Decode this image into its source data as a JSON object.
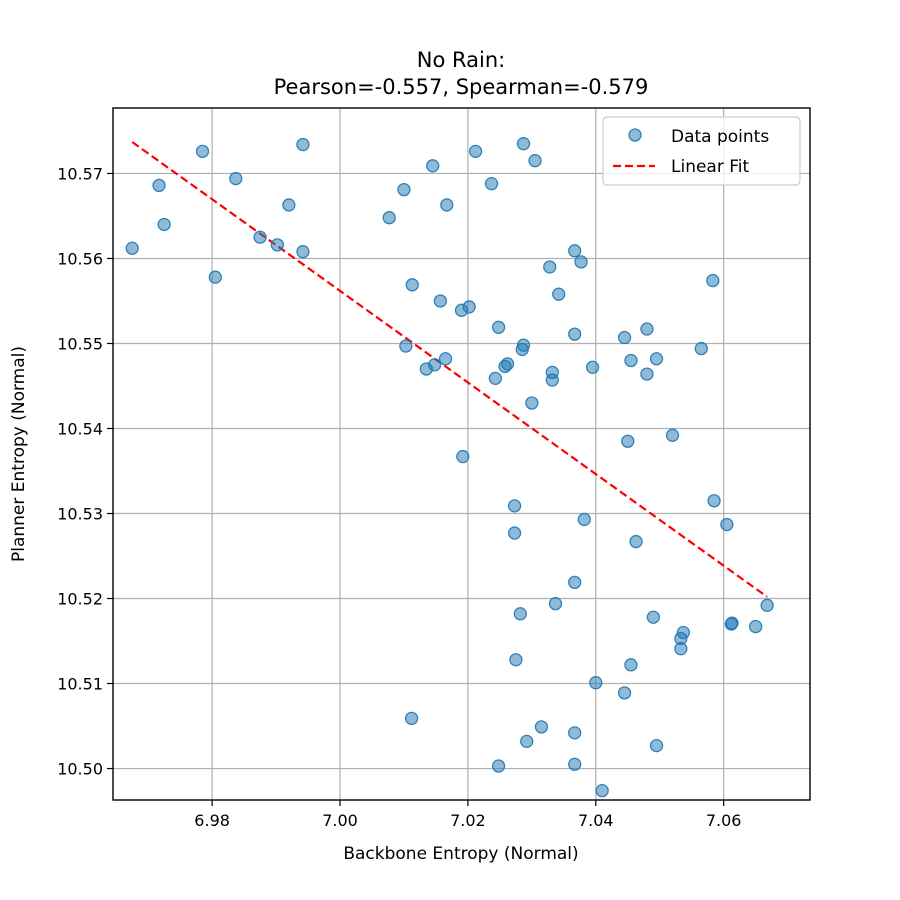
{
  "chart_data": {
    "type": "scatter",
    "title_line1": "No Rain:",
    "title_line2": "Pearson=-0.557, Spearman=-0.579",
    "xlabel": "Backbone Entropy (Normal)",
    "ylabel": "Planner Entropy (Normal)",
    "xlim": [
      6.9645,
      7.0735
    ],
    "ylim": [
      10.4963,
      10.5777
    ],
    "xticks": [
      6.98,
      7.0,
      7.02,
      7.04,
      7.06
    ],
    "xtick_labels": [
      "6.98",
      "7.00",
      "7.02",
      "7.04",
      "7.06"
    ],
    "yticks": [
      10.5,
      10.51,
      10.52,
      10.53,
      10.54,
      10.55,
      10.56,
      10.57
    ],
    "ytick_labels": [
      "10.50",
      "10.51",
      "10.52",
      "10.53",
      "10.54",
      "10.55",
      "10.56",
      "10.57"
    ],
    "grid": true,
    "legend_position": "top-right",
    "legend": [
      {
        "label": "Data points",
        "kind": "marker",
        "color": "#1f77b4"
      },
      {
        "label": "Linear Fit",
        "kind": "dashed-line",
        "color": "#ff0000"
      }
    ],
    "series": [
      {
        "name": "Data points",
        "color": "#1f77b4",
        "points": [
          [
            6.9675,
            10.5612
          ],
          [
            6.9717,
            10.5686
          ],
          [
            6.9725,
            10.564
          ],
          [
            6.9785,
            10.5726
          ],
          [
            6.9805,
            10.5578
          ],
          [
            6.9837,
            10.5694
          ],
          [
            6.9875,
            10.5625
          ],
          [
            6.9902,
            10.5616
          ],
          [
            6.992,
            10.5663
          ],
          [
            6.9942,
            10.5734
          ],
          [
            6.9942,
            10.5608
          ],
          [
            7.0077,
            10.5648
          ],
          [
            7.01,
            10.5681
          ],
          [
            7.0103,
            10.5497
          ],
          [
            7.0113,
            10.5569
          ],
          [
            7.0112,
            10.5059
          ],
          [
            7.0135,
            10.547
          ],
          [
            7.0145,
            10.5709
          ],
          [
            7.0148,
            10.5475
          ],
          [
            7.0157,
            10.555
          ],
          [
            7.0165,
            10.5482
          ],
          [
            7.0167,
            10.5663
          ],
          [
            7.019,
            10.5539
          ],
          [
            7.0192,
            10.5367
          ],
          [
            7.0202,
            10.5543
          ],
          [
            7.0212,
            10.5726
          ],
          [
            7.0237,
            10.5688
          ],
          [
            7.0243,
            10.5459
          ],
          [
            7.0248,
            10.5519
          ],
          [
            7.0248,
            10.5003
          ],
          [
            7.0258,
            10.5473
          ],
          [
            7.0262,
            10.5476
          ],
          [
            7.0273,
            10.5309
          ],
          [
            7.0273,
            10.5277
          ],
          [
            7.0275,
            10.5128
          ],
          [
            7.0282,
            10.5182
          ],
          [
            7.0285,
            10.5493
          ],
          [
            7.0287,
            10.5498
          ],
          [
            7.0287,
            10.5735
          ],
          [
            7.0292,
            10.5032
          ],
          [
            7.03,
            10.543
          ],
          [
            7.0305,
            10.5715
          ],
          [
            7.0315,
            10.5049
          ],
          [
            7.0328,
            10.559
          ],
          [
            7.0332,
            10.5466
          ],
          [
            7.0332,
            10.5457
          ],
          [
            7.0337,
            10.5194
          ],
          [
            7.0342,
            10.5558
          ],
          [
            7.0367,
            10.5511
          ],
          [
            7.0367,
            10.5609
          ],
          [
            7.0367,
            10.5219
          ],
          [
            7.0367,
            10.5042
          ],
          [
            7.0367,
            10.5005
          ],
          [
            7.0377,
            10.5596
          ],
          [
            7.0382,
            10.5293
          ],
          [
            7.0395,
            10.5472
          ],
          [
            7.04,
            10.5101
          ],
          [
            7.041,
            10.4974
          ],
          [
            7.0445,
            10.5507
          ],
          [
            7.0445,
            10.5089
          ],
          [
            7.045,
            10.5385
          ],
          [
            7.0455,
            10.548
          ],
          [
            7.0455,
            10.5122
          ],
          [
            7.0463,
            10.5267
          ],
          [
            7.048,
            10.5517
          ],
          [
            7.048,
            10.5464
          ],
          [
            7.049,
            10.5178
          ],
          [
            7.0495,
            10.5482
          ],
          [
            7.0495,
            10.5027
          ],
          [
            7.052,
            10.5392
          ],
          [
            7.0533,
            10.5153
          ],
          [
            7.0533,
            10.5141
          ],
          [
            7.0537,
            10.516
          ],
          [
            7.0565,
            10.5494
          ],
          [
            7.0583,
            10.5574
          ],
          [
            7.0585,
            10.5315
          ],
          [
            7.0605,
            10.5287
          ],
          [
            7.0612,
            10.517
          ],
          [
            7.0613,
            10.5171
          ],
          [
            7.065,
            10.5167
          ],
          [
            7.0668,
            10.5192
          ]
        ]
      }
    ],
    "fit_line": {
      "name": "Linear Fit",
      "color": "#ff0000",
      "x": [
        6.9675,
        7.0668
      ],
      "y": [
        10.5737,
        10.5202
      ]
    }
  }
}
